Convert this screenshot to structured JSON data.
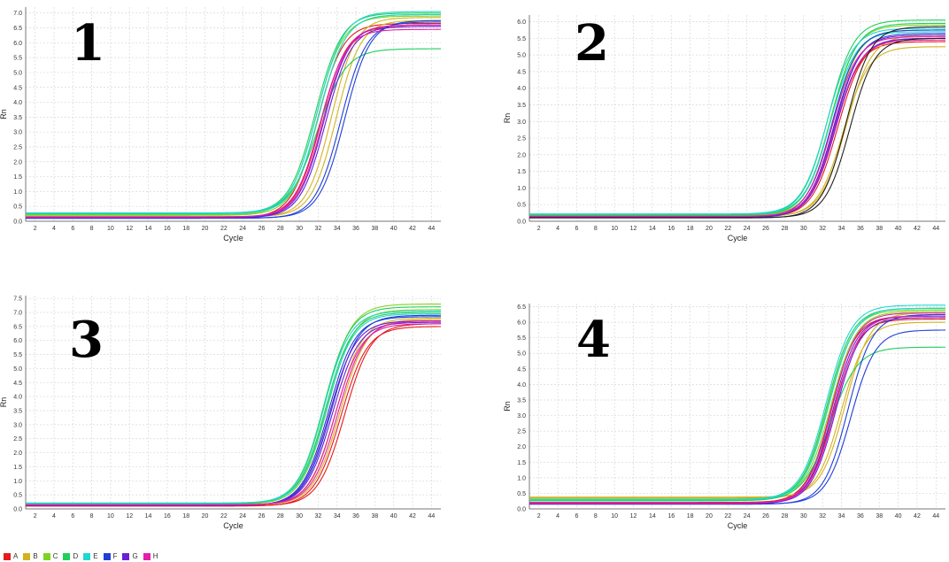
{
  "chart_data": [
    {
      "type": "line",
      "panel_label": "1",
      "xlabel": "Cycle",
      "ylabel": "Rn",
      "xlim": [
        1,
        45
      ],
      "ylim": [
        0,
        7.2
      ],
      "x_ticks": [
        2,
        4,
        6,
        8,
        10,
        12,
        14,
        16,
        18,
        20,
        22,
        24,
        26,
        28,
        30,
        32,
        34,
        36,
        38,
        40,
        42,
        44
      ],
      "y_ticks": [
        0,
        0.5,
        1,
        1.5,
        2,
        2.5,
        3,
        3.5,
        4,
        4.5,
        5,
        5.5,
        6,
        6.5,
        7
      ],
      "grid": true,
      "series": [
        {
          "name": "A",
          "base": 0.12,
          "plateau": 6.65,
          "midpoint": 31.9,
          "slope": 1.35
        },
        {
          "name": "A",
          "base": 0.13,
          "plateau": 6.55,
          "midpoint": 32.3,
          "slope": 1.35
        },
        {
          "name": "B",
          "base": 0.15,
          "plateau": 6.85,
          "midpoint": 33.4,
          "slope": 1.3
        },
        {
          "name": "B",
          "base": 0.16,
          "plateau": 6.75,
          "midpoint": 33.9,
          "slope": 1.3
        },
        {
          "name": "C",
          "base": 0.22,
          "plateau": 6.9,
          "midpoint": 31.8,
          "slope": 1.4
        },
        {
          "name": "C",
          "base": 0.2,
          "plateau": 6.95,
          "midpoint": 32.1,
          "slope": 1.4
        },
        {
          "name": "D",
          "base": 0.27,
          "plateau": 7.0,
          "midpoint": 31.7,
          "slope": 1.4
        },
        {
          "name": "D",
          "base": 0.25,
          "plateau": 5.8,
          "midpoint": 31.9,
          "slope": 1.5
        },
        {
          "name": "E",
          "base": 0.28,
          "plateau": 7.05,
          "midpoint": 31.9,
          "slope": 1.4
        },
        {
          "name": "E",
          "base": 0.26,
          "plateau": 6.95,
          "midpoint": 32.1,
          "slope": 1.4
        },
        {
          "name": "F",
          "base": 0.1,
          "plateau": 6.7,
          "midpoint": 34.4,
          "slope": 1.35
        },
        {
          "name": "F",
          "base": 0.11,
          "plateau": 6.75,
          "midpoint": 34.8,
          "slope": 1.35
        },
        {
          "name": "G",
          "base": 0.13,
          "plateau": 6.6,
          "midpoint": 32.6,
          "slope": 1.35
        },
        {
          "name": "G",
          "base": 0.12,
          "plateau": 6.55,
          "midpoint": 32.8,
          "slope": 1.35
        },
        {
          "name": "H",
          "base": 0.14,
          "plateau": 6.45,
          "midpoint": 32.2,
          "slope": 1.35
        },
        {
          "name": "H",
          "base": 0.15,
          "plateau": 6.6,
          "midpoint": 32.5,
          "slope": 1.35
        }
      ]
    },
    {
      "type": "line",
      "panel_label": "2",
      "xlabel": "Cycle",
      "ylabel": "Rn",
      "xlim": [
        1,
        45
      ],
      "ylim": [
        0,
        6.2
      ],
      "x_ticks": [
        2,
        4,
        6,
        8,
        10,
        12,
        14,
        16,
        18,
        20,
        22,
        24,
        26,
        28,
        30,
        32,
        34,
        36,
        38,
        40,
        42,
        44
      ],
      "y_ticks": [
        0,
        0.5,
        1,
        1.5,
        2,
        2.5,
        3,
        3.5,
        4,
        4.5,
        5,
        5.5,
        6
      ],
      "grid": true,
      "series": [
        {
          "name": "A",
          "base": 0.12,
          "plateau": 5.4,
          "midpoint": 33.3,
          "slope": 1.35
        },
        {
          "name": "A",
          "base": 0.13,
          "plateau": 5.5,
          "midpoint": 33.6,
          "slope": 1.35
        },
        {
          "name": "B",
          "base": 0.14,
          "plateau": 5.25,
          "midpoint": 34.2,
          "slope": 1.35
        },
        {
          "name": "B",
          "base": 0.15,
          "plateau": 5.6,
          "midpoint": 34.5,
          "slope": 1.35
        },
        {
          "name": "C",
          "base": 0.16,
          "plateau": 5.9,
          "midpoint": 32.8,
          "slope": 1.35
        },
        {
          "name": "C",
          "base": 0.17,
          "plateau": 5.75,
          "midpoint": 33.1,
          "slope": 1.35
        },
        {
          "name": "D",
          "base": 0.2,
          "plateau": 6.05,
          "midpoint": 32.6,
          "slope": 1.35
        },
        {
          "name": "D",
          "base": 0.19,
          "plateau": 5.95,
          "midpoint": 32.9,
          "slope": 1.35
        },
        {
          "name": "E",
          "base": 0.22,
          "plateau": 5.8,
          "midpoint": 32.5,
          "slope": 1.35
        },
        {
          "name": "E",
          "base": 0.21,
          "plateau": 5.7,
          "midpoint": 32.8,
          "slope": 1.35
        },
        {
          "name": "F",
          "base": 0.12,
          "plateau": 5.75,
          "midpoint": 33.0,
          "slope": 1.35
        },
        {
          "name": "F",
          "base": 0.11,
          "plateau": 5.65,
          "midpoint": 33.3,
          "slope": 1.35
        },
        {
          "name": "G",
          "base": 0.12,
          "plateau": 5.6,
          "midpoint": 33.2,
          "slope": 1.35
        },
        {
          "name": "G",
          "base": 0.13,
          "plateau": 5.5,
          "midpoint": 33.4,
          "slope": 1.35
        },
        {
          "name": "H",
          "base": 0.14,
          "plateau": 5.55,
          "midpoint": 33.0,
          "slope": 1.35
        },
        {
          "name": "H",
          "base": 0.15,
          "plateau": 5.45,
          "midpoint": 33.3,
          "slope": 1.35
        },
        {
          "name": "",
          "base": 0.1,
          "plateau": 5.85,
          "midpoint": 34.5,
          "slope": 1.3
        },
        {
          "name": "",
          "base": 0.11,
          "plateau": 5.5,
          "midpoint": 34.9,
          "slope": 1.3
        }
      ]
    },
    {
      "type": "line",
      "panel_label": "3",
      "xlabel": "Cycle",
      "ylabel": "Rn",
      "xlim": [
        1,
        45
      ],
      "ylim": [
        0,
        7.6
      ],
      "x_ticks": [
        2,
        4,
        6,
        8,
        10,
        12,
        14,
        16,
        18,
        20,
        22,
        24,
        26,
        28,
        30,
        32,
        34,
        36,
        38,
        40,
        42,
        44
      ],
      "y_ticks": [
        0,
        0.5,
        1,
        1.5,
        2,
        2.5,
        3,
        3.5,
        4,
        4.5,
        5,
        5.5,
        6,
        6.5,
        7,
        7.5
      ],
      "grid": true,
      "series": [
        {
          "name": "A",
          "base": 0.1,
          "plateau": 6.5,
          "midpoint": 34.4,
          "slope": 1.4
        },
        {
          "name": "A",
          "base": 0.11,
          "plateau": 6.6,
          "midpoint": 34.8,
          "slope": 1.4
        },
        {
          "name": "B",
          "base": 0.13,
          "plateau": 6.8,
          "midpoint": 33.9,
          "slope": 1.4
        },
        {
          "name": "B",
          "base": 0.14,
          "plateau": 6.75,
          "midpoint": 34.3,
          "slope": 1.4
        },
        {
          "name": "C",
          "base": 0.16,
          "plateau": 7.3,
          "midpoint": 32.7,
          "slope": 1.4
        },
        {
          "name": "C",
          "base": 0.17,
          "plateau": 7.1,
          "midpoint": 33.0,
          "slope": 1.4
        },
        {
          "name": "D",
          "base": 0.18,
          "plateau": 7.2,
          "midpoint": 32.6,
          "slope": 1.4
        },
        {
          "name": "D",
          "base": 0.19,
          "plateau": 7.0,
          "midpoint": 32.8,
          "slope": 1.4
        },
        {
          "name": "E",
          "base": 0.2,
          "plateau": 7.05,
          "midpoint": 32.6,
          "slope": 1.4
        },
        {
          "name": "E",
          "base": 0.21,
          "plateau": 6.95,
          "midpoint": 32.9,
          "slope": 1.4
        },
        {
          "name": "F",
          "base": 0.12,
          "plateau": 6.85,
          "midpoint": 33.1,
          "slope": 1.4
        },
        {
          "name": "F",
          "base": 0.13,
          "plateau": 6.9,
          "midpoint": 33.4,
          "slope": 1.4
        },
        {
          "name": "G",
          "base": 0.12,
          "plateau": 6.7,
          "midpoint": 33.2,
          "slope": 1.4
        },
        {
          "name": "G",
          "base": 0.13,
          "plateau": 6.65,
          "midpoint": 33.5,
          "slope": 1.4
        },
        {
          "name": "H",
          "base": 0.14,
          "plateau": 6.6,
          "midpoint": 33.8,
          "slope": 1.4
        },
        {
          "name": "H",
          "base": 0.15,
          "plateau": 6.7,
          "midpoint": 34.1,
          "slope": 1.4
        }
      ]
    },
    {
      "type": "line",
      "panel_label": "4",
      "xlabel": "Cycle",
      "ylabel": "Rn",
      "xlim": [
        1,
        45
      ],
      "ylim": [
        0,
        6.6
      ],
      "x_ticks": [
        2,
        4,
        6,
        8,
        10,
        12,
        14,
        16,
        18,
        20,
        22,
        24,
        26,
        28,
        30,
        32,
        34,
        36,
        38,
        40,
        42,
        44
      ],
      "y_ticks": [
        0,
        0.5,
        1,
        1.5,
        2,
        2.5,
        3,
        3.5,
        4,
        4.5,
        5,
        5.5,
        6,
        6.5
      ],
      "grid": true,
      "series": [
        {
          "name": "A",
          "base": 0.2,
          "plateau": 6.2,
          "midpoint": 32.9,
          "slope": 1.3
        },
        {
          "name": "A",
          "base": 0.21,
          "plateau": 6.1,
          "midpoint": 33.2,
          "slope": 1.3
        },
        {
          "name": "B",
          "base": 0.35,
          "plateau": 6.0,
          "midpoint": 34.0,
          "slope": 1.3
        },
        {
          "name": "B",
          "base": 0.38,
          "plateau": 6.3,
          "midpoint": 34.4,
          "slope": 1.3
        },
        {
          "name": "C",
          "base": 0.3,
          "plateau": 6.4,
          "midpoint": 32.6,
          "slope": 1.35
        },
        {
          "name": "C",
          "base": 0.32,
          "plateau": 6.35,
          "midpoint": 32.9,
          "slope": 1.35
        },
        {
          "name": "D",
          "base": 0.28,
          "plateau": 6.45,
          "midpoint": 32.5,
          "slope": 1.35
        },
        {
          "name": "D",
          "base": 0.26,
          "plateau": 5.2,
          "midpoint": 32.8,
          "slope": 1.45
        },
        {
          "name": "E",
          "base": 0.3,
          "plateau": 6.55,
          "midpoint": 32.4,
          "slope": 1.35
        },
        {
          "name": "E",
          "base": 0.29,
          "plateau": 6.45,
          "midpoint": 32.7,
          "slope": 1.35
        },
        {
          "name": "F",
          "base": 0.15,
          "plateau": 6.25,
          "midpoint": 34.7,
          "slope": 1.3
        },
        {
          "name": "F",
          "base": 0.16,
          "plateau": 5.75,
          "midpoint": 35.0,
          "slope": 1.3
        },
        {
          "name": "G",
          "base": 0.16,
          "plateau": 6.2,
          "midpoint": 33.1,
          "slope": 1.3
        },
        {
          "name": "G",
          "base": 0.17,
          "plateau": 6.15,
          "midpoint": 33.4,
          "slope": 1.3
        },
        {
          "name": "H",
          "base": 0.18,
          "plateau": 6.3,
          "midpoint": 33.0,
          "slope": 1.3
        },
        {
          "name": "H",
          "base": 0.19,
          "plateau": 6.2,
          "midpoint": 33.3,
          "slope": 1.3
        }
      ]
    }
  ],
  "legend": [
    {
      "label": "A",
      "color": "#e41a1c"
    },
    {
      "label": "B",
      "color": "#d4b21f"
    },
    {
      "label": "C",
      "color": "#7ed321"
    },
    {
      "label": "D",
      "color": "#1fcf5a"
    },
    {
      "label": "E",
      "color": "#20d6d0"
    },
    {
      "label": "F",
      "color": "#1f3fd6"
    },
    {
      "label": "G",
      "color": "#6a1fd6"
    },
    {
      "label": "H",
      "color": "#e21fa8"
    }
  ],
  "unlabeled_series_color": "#222222"
}
